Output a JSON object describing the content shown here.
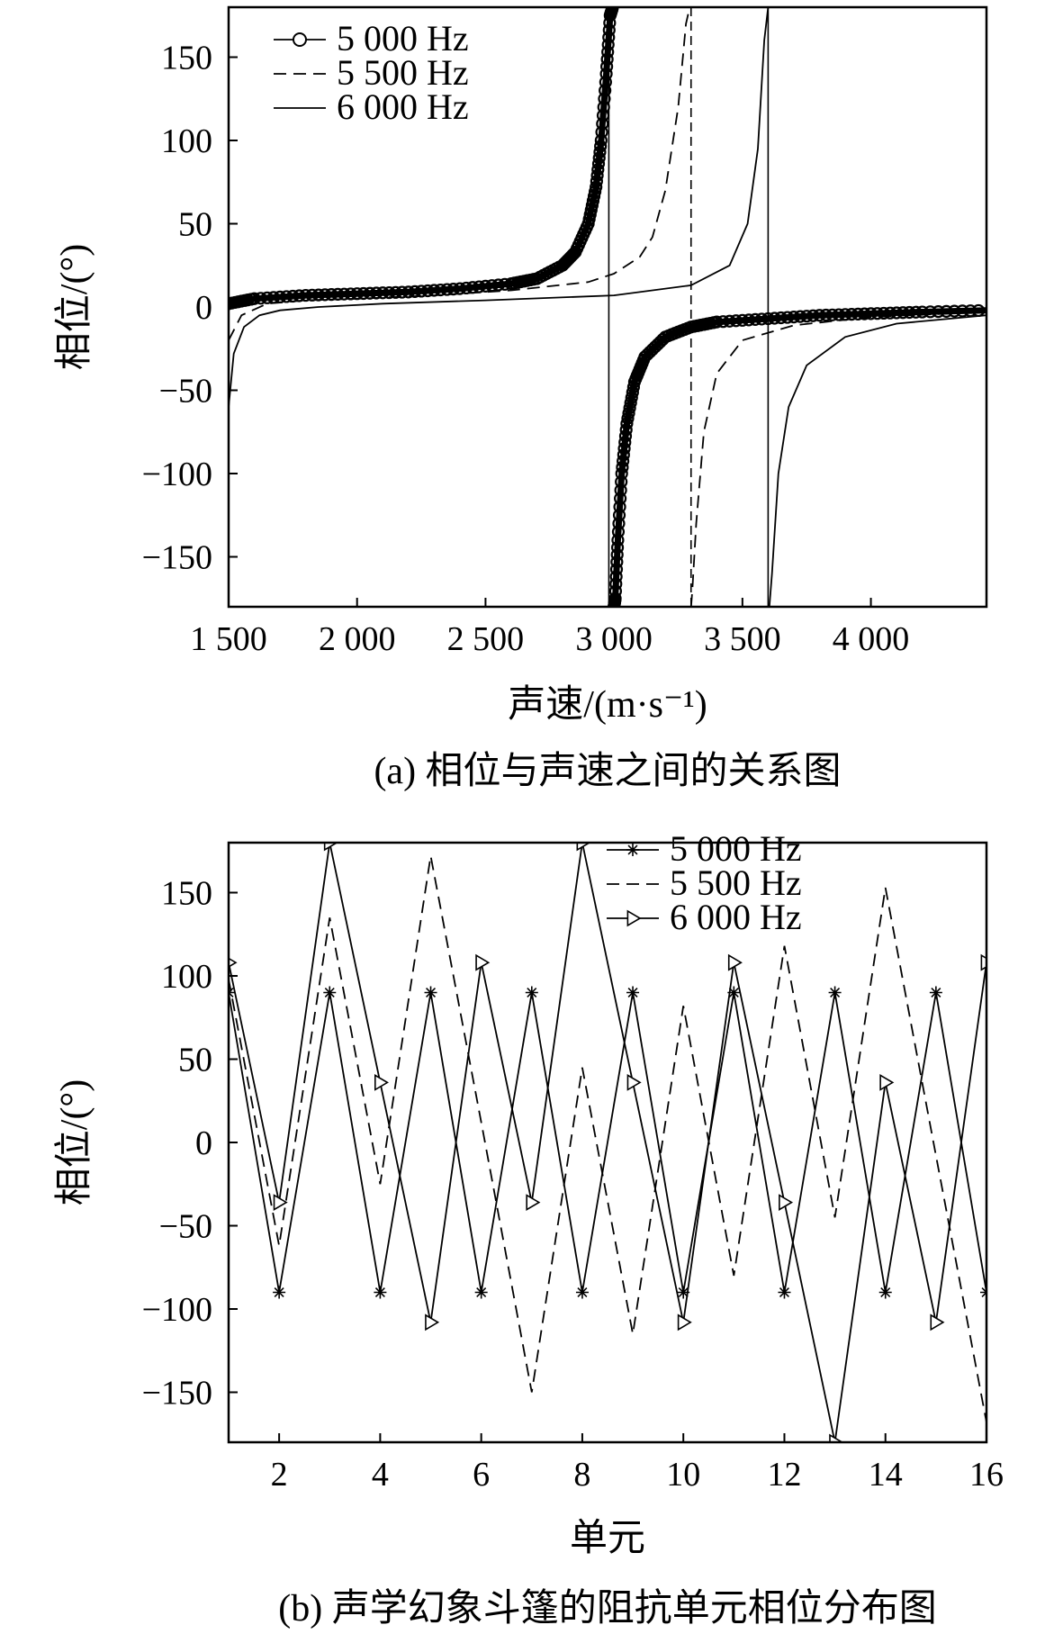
{
  "chart_data": [
    {
      "type": "line",
      "caption": "(a) 相位与声速之间的关系图",
      "xlabel": "声速/(m·s⁻¹)",
      "ylabel": "相位/(°)",
      "xlim": [
        1500,
        4450
      ],
      "ylim": [
        -180,
        180
      ],
      "xticks": [
        1500,
        2000,
        2500,
        3000,
        3500,
        4000
      ],
      "xtick_labels": [
        "1 500",
        "2 000",
        "2 500",
        "3 000",
        "3 500",
        "4 000"
      ],
      "yticks": [
        150,
        100,
        50,
        0,
        -50,
        -100,
        -150
      ],
      "ytick_labels": [
        "150",
        "100",
        "50",
        "0",
        "−50",
        "−100",
        "−150"
      ],
      "legend_position": "top-left",
      "series": [
        {
          "name": "5 000 Hz",
          "style": "circle-markers",
          "x": [
            1500,
            1600,
            1800,
            2000,
            2200,
            2400,
            2600,
            2700,
            2800,
            2850,
            2900,
            2930,
            2950,
            2970,
            2985,
            2995,
            3000,
            3005,
            3015,
            3030,
            3050,
            3080,
            3120,
            3200,
            3300,
            3400,
            3600,
            3800,
            4000,
            4200,
            4450
          ],
          "y": [
            2,
            5,
            7,
            8,
            9,
            11,
            14,
            17,
            25,
            33,
            50,
            72,
            100,
            140,
            175,
            180,
            -180,
            -175,
            -140,
            -100,
            -70,
            -45,
            -30,
            -18,
            -12,
            -9,
            -7,
            -5,
            -4,
            -3,
            -2
          ]
        },
        {
          "name": "5 500 Hz",
          "style": "dashed",
          "x": [
            1500,
            1550,
            1650,
            1800,
            2000,
            2300,
            2600,
            2900,
            3000,
            3100,
            3150,
            3200,
            3250,
            3280,
            3295,
            3300,
            3305,
            3320,
            3350,
            3400,
            3500,
            3700,
            4000,
            4450
          ],
          "y": [
            -20,
            -5,
            2,
            4,
            5,
            7,
            10,
            15,
            20,
            30,
            42,
            70,
            120,
            170,
            180,
            -180,
            -170,
            -130,
            -75,
            -40,
            -20,
            -11,
            -6,
            -3
          ]
        },
        {
          "name": "6 000 Hz",
          "style": "solid",
          "x": [
            1500,
            1520,
            1560,
            1620,
            1700,
            1850,
            2100,
            2500,
            3000,
            3300,
            3450,
            3520,
            3560,
            3585,
            3600,
            3605,
            3615,
            3640,
            3680,
            3750,
            3900,
            4100,
            4450
          ],
          "y": [
            -60,
            -28,
            -12,
            -5,
            -2,
            0,
            2,
            4,
            7,
            13,
            25,
            50,
            95,
            160,
            180,
            -180,
            -160,
            -100,
            -60,
            -35,
            -18,
            -10,
            -5
          ]
        }
      ],
      "vertical_lines_x": [
        2980,
        3300,
        3600
      ]
    },
    {
      "type": "line",
      "caption": "(b) 声学幻象斗篷的阻抗单元相位分布图",
      "xlabel": "单元",
      "ylabel": "相位/(°)",
      "xlim": [
        1,
        16
      ],
      "ylim": [
        -180,
        180
      ],
      "xticks": [
        2,
        4,
        6,
        8,
        10,
        12,
        14,
        16
      ],
      "xtick_labels": [
        "2",
        "4",
        "6",
        "8",
        "10",
        "12",
        "14",
        "16"
      ],
      "yticks": [
        150,
        100,
        50,
        0,
        -50,
        -100,
        -150
      ],
      "ytick_labels": [
        "150",
        "100",
        "50",
        "0",
        "−50",
        "−100",
        "−150"
      ],
      "legend_position": "top-right",
      "series": [
        {
          "name": "5 000 Hz",
          "style": "star-markers",
          "x": [
            1,
            2,
            3,
            4,
            5,
            6,
            7,
            8,
            9,
            10,
            11,
            12,
            13,
            14,
            15,
            16
          ],
          "y": [
            90,
            -90,
            90,
            -90,
            90,
            -90,
            90,
            -90,
            90,
            -90,
            90,
            -90,
            90,
            -90,
            90,
            -90
          ]
        },
        {
          "name": "5 500 Hz",
          "style": "dashed",
          "x": [
            1,
            2,
            3,
            4,
            5,
            6,
            7,
            8,
            9,
            10,
            11,
            12,
            13,
            14,
            15,
            16
          ],
          "y": [
            98,
            -62,
            135,
            -25,
            172,
            12,
            -150,
            45,
            -115,
            82,
            -80,
            118,
            -45,
            153,
            -8,
            -168
          ]
        },
        {
          "name": "6 000 Hz",
          "style": "triangle-markers",
          "x": [
            1,
            2,
            3,
            4,
            5,
            6,
            7,
            8,
            9,
            10,
            11,
            12,
            13,
            14,
            15,
            16
          ],
          "y": [
            108,
            -36,
            180,
            36,
            -108,
            108,
            -36,
            180,
            36,
            -108,
            108,
            -36,
            -180,
            36,
            -108,
            108
          ]
        }
      ]
    }
  ]
}
